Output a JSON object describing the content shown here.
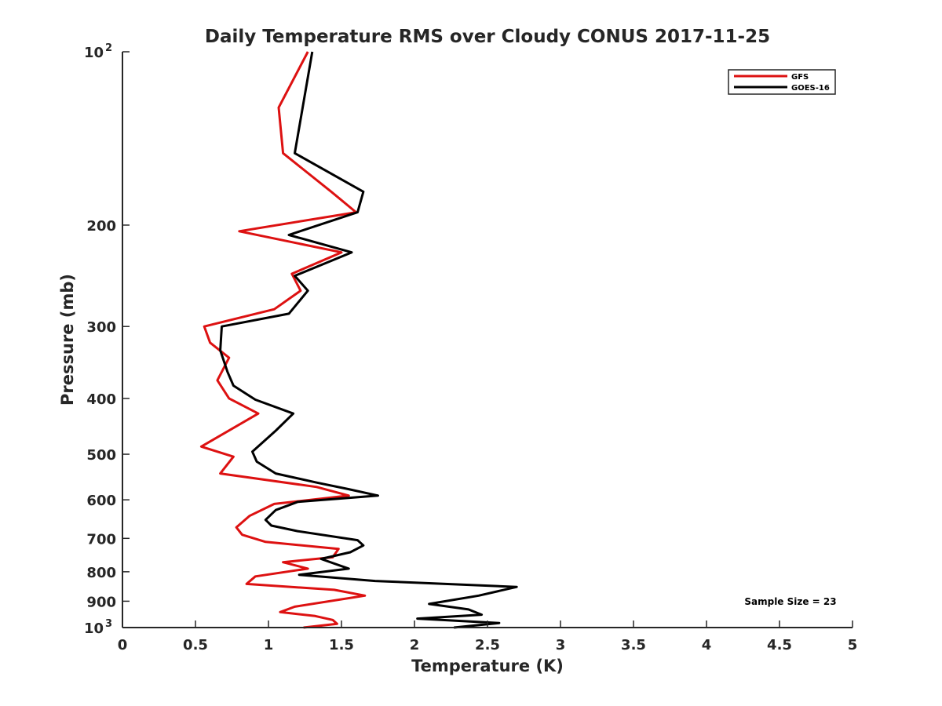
{
  "chart_data": {
    "type": "line",
    "title": "Daily Temperature RMS over Cloudy CONUS 2017-11-25",
    "xlabel": "Temperature (K)",
    "ylabel": "Pressure (mb)",
    "xlim": [
      0,
      5
    ],
    "ylim": [
      1000,
      100
    ],
    "yscale": "log",
    "x_ticks": [
      {
        "value": 0,
        "label": "0"
      },
      {
        "value": 0.5,
        "label": "0.5"
      },
      {
        "value": 1,
        "label": "1"
      },
      {
        "value": 1.5,
        "label": "1.5"
      },
      {
        "value": 2,
        "label": "2"
      },
      {
        "value": 2.5,
        "label": "2.5"
      },
      {
        "value": 3,
        "label": "3"
      },
      {
        "value": 3.5,
        "label": "3.5"
      },
      {
        "value": 4,
        "label": "4"
      },
      {
        "value": 4.5,
        "label": "4.5"
      },
      {
        "value": 5,
        "label": "5"
      }
    ],
    "y_ticks": [
      {
        "value": 100,
        "label": "10",
        "sup": "2"
      },
      {
        "value": 200,
        "label": "200"
      },
      {
        "value": 300,
        "label": "300"
      },
      {
        "value": 400,
        "label": "400"
      },
      {
        "value": 500,
        "label": "500"
      },
      {
        "value": 600,
        "label": "600"
      },
      {
        "value": 700,
        "label": "700"
      },
      {
        "value": 800,
        "label": "800"
      },
      {
        "value": 900,
        "label": "900"
      },
      {
        "value": 1000,
        "label": "10",
        "sup": "3"
      }
    ],
    "grid": false,
    "legend_position": "top-right",
    "annotation": "Sample Size = 23",
    "series": [
      {
        "name": "GFS",
        "color": "#dd1111",
        "points": [
          [
            1.27,
            100
          ],
          [
            1.07,
            125
          ],
          [
            1.1,
            150
          ],
          [
            1.43,
            175
          ],
          [
            1.6,
            190
          ],
          [
            0.8,
            205
          ],
          [
            1.5,
            223
          ],
          [
            1.16,
            243
          ],
          [
            1.22,
            260
          ],
          [
            1.04,
            280
          ],
          [
            0.56,
            300
          ],
          [
            0.6,
            320
          ],
          [
            0.73,
            340
          ],
          [
            0.65,
            372
          ],
          [
            0.73,
            400
          ],
          [
            0.93,
            425
          ],
          [
            0.54,
            485
          ],
          [
            0.76,
            505
          ],
          [
            0.67,
            540
          ],
          [
            1.33,
            570
          ],
          [
            1.55,
            590
          ],
          [
            1.04,
            610
          ],
          [
            0.87,
            640
          ],
          [
            0.78,
            670
          ],
          [
            0.82,
            690
          ],
          [
            0.98,
            710
          ],
          [
            1.48,
            730
          ],
          [
            1.44,
            755
          ],
          [
            1.1,
            770
          ],
          [
            1.27,
            790
          ],
          [
            0.91,
            815
          ],
          [
            0.85,
            840
          ],
          [
            1.45,
            860
          ],
          [
            1.66,
            880
          ],
          [
            1.18,
            920
          ],
          [
            1.08,
            940
          ],
          [
            1.32,
            955
          ],
          [
            1.44,
            970
          ],
          [
            1.47,
            985
          ],
          [
            1.24,
            1000
          ]
        ]
      },
      {
        "name": "GOES-16",
        "color": "#000000",
        "points": [
          [
            1.3,
            100
          ],
          [
            1.18,
            150
          ],
          [
            1.65,
            175
          ],
          [
            1.61,
            190
          ],
          [
            1.14,
            208
          ],
          [
            1.57,
            223
          ],
          [
            1.18,
            245
          ],
          [
            1.27,
            260
          ],
          [
            1.14,
            285
          ],
          [
            0.68,
            300
          ],
          [
            0.67,
            330
          ],
          [
            0.72,
            360
          ],
          [
            0.76,
            380
          ],
          [
            0.91,
            402
          ],
          [
            1.17,
            425
          ],
          [
            1.05,
            455
          ],
          [
            0.89,
            495
          ],
          [
            0.92,
            515
          ],
          [
            1.05,
            540
          ],
          [
            1.33,
            560
          ],
          [
            1.55,
            575
          ],
          [
            1.75,
            590
          ],
          [
            1.2,
            605
          ],
          [
            1.05,
            625
          ],
          [
            0.98,
            650
          ],
          [
            1.02,
            665
          ],
          [
            1.2,
            680
          ],
          [
            1.61,
            705
          ],
          [
            1.65,
            720
          ],
          [
            1.56,
            740
          ],
          [
            1.36,
            760
          ],
          [
            1.55,
            790
          ],
          [
            1.21,
            810
          ],
          [
            1.73,
            830
          ],
          [
            2.7,
            850
          ],
          [
            2.44,
            880
          ],
          [
            2.1,
            910
          ],
          [
            2.37,
            930
          ],
          [
            2.46,
            950
          ],
          [
            2.02,
            965
          ],
          [
            2.58,
            982
          ],
          [
            2.27,
            1000
          ]
        ]
      }
    ]
  }
}
